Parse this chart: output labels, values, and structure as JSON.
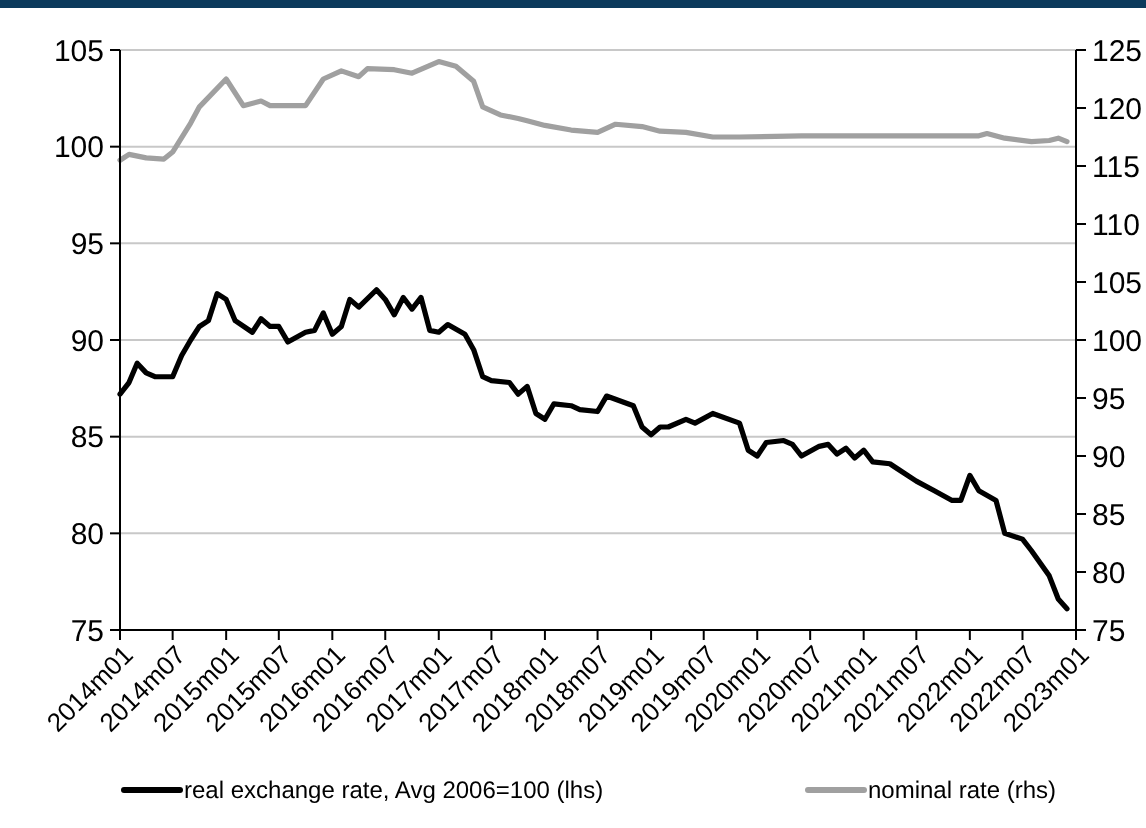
{
  "chart_data": {
    "type": "line",
    "xlim": [
      "2014-01",
      "2023-01"
    ],
    "xticks": [
      {
        "value": "2014-01",
        "label": "2014m01"
      },
      {
        "value": "2014-07",
        "label": "2014m07"
      },
      {
        "value": "2015-01",
        "label": "2015m01"
      },
      {
        "value": "2015-07",
        "label": "2015m07"
      },
      {
        "value": "2016-01",
        "label": "2016m01"
      },
      {
        "value": "2016-07",
        "label": "2016m07"
      },
      {
        "value": "2017-01",
        "label": "2017m01"
      },
      {
        "value": "2017-07",
        "label": "2017m07"
      },
      {
        "value": "2018-01",
        "label": "2018m01"
      },
      {
        "value": "2018-07",
        "label": "2018m07"
      },
      {
        "value": "2019-01",
        "label": "2019m01"
      },
      {
        "value": "2019-07",
        "label": "2019m07"
      },
      {
        "value": "2020-01",
        "label": "2020m01"
      },
      {
        "value": "2020-07",
        "label": "2020m07"
      },
      {
        "value": "2021-01",
        "label": "2021m01"
      },
      {
        "value": "2021-07",
        "label": "2021m07"
      },
      {
        "value": "2022-01",
        "label": "2022m01"
      },
      {
        "value": "2022-07",
        "label": "2022m07"
      },
      {
        "value": "2023-01",
        "label": "2023m01"
      }
    ],
    "ylim": [
      75,
      105
    ],
    "yticks": [
      75,
      80,
      85,
      90,
      95,
      100,
      105
    ],
    "y2lim": [
      75,
      125
    ],
    "y2ticks": [
      75,
      80,
      85,
      90,
      95,
      100,
      105,
      110,
      115,
      120,
      125
    ],
    "grid": "y",
    "legend": "bottom",
    "series": [
      {
        "name": "real exchange rate, Avg 2006=100 (lhs)",
        "color": "#000000",
        "axis": "y",
        "x": [
          "2014-01",
          "2014-02",
          "2014-03",
          "2014-04",
          "2014-05",
          "2014-07",
          "2014-08",
          "2014-09",
          "2014-10",
          "2014-11",
          "2014-12",
          "2015-01",
          "2015-02",
          "2015-04",
          "2015-05",
          "2015-06",
          "2015-07",
          "2015-08",
          "2015-10",
          "2015-11",
          "2015-12",
          "2016-01",
          "2016-02",
          "2016-03",
          "2016-04",
          "2016-06",
          "2016-07",
          "2016-08",
          "2016-09",
          "2016-10",
          "2016-11",
          "2016-12",
          "2017-01",
          "2017-02",
          "2017-04",
          "2017-05",
          "2017-06",
          "2017-07",
          "2017-09",
          "2017-10",
          "2017-11",
          "2017-12",
          "2018-01",
          "2018-02",
          "2018-04",
          "2018-05",
          "2018-07",
          "2018-08",
          "2018-11",
          "2018-12",
          "2019-01",
          "2019-02",
          "2019-03",
          "2019-05",
          "2019-06",
          "2019-08",
          "2019-11",
          "2019-12",
          "2020-01",
          "2020-02",
          "2020-04",
          "2020-05",
          "2020-06",
          "2020-08",
          "2020-09",
          "2020-10",
          "2020-11",
          "2020-12",
          "2021-01",
          "2021-02",
          "2021-04",
          "2021-05",
          "2021-07",
          "2021-09",
          "2021-11",
          "2021-12",
          "2022-01",
          "2022-02",
          "2022-04",
          "2022-05",
          "2022-07",
          "2022-08",
          "2022-10",
          "2022-11",
          "2022-12"
        ],
        "values": [
          87.2,
          87.8,
          88.8,
          88.3,
          88.1,
          88.1,
          89.2,
          90.0,
          90.7,
          91.0,
          92.4,
          92.1,
          91.0,
          90.4,
          91.1,
          90.7,
          90.7,
          89.9,
          90.4,
          90.5,
          91.4,
          90.3,
          90.7,
          92.1,
          91.7,
          92.6,
          92.1,
          91.3,
          92.2,
          91.6,
          92.2,
          90.5,
          90.4,
          90.8,
          90.3,
          89.5,
          88.1,
          87.9,
          87.8,
          87.2,
          87.6,
          86.2,
          85.9,
          86.7,
          86.6,
          86.4,
          86.3,
          87.1,
          86.6,
          85.5,
          85.1,
          85.5,
          85.5,
          85.9,
          85.7,
          86.2,
          85.7,
          84.3,
          84.0,
          84.7,
          84.8,
          84.6,
          84.0,
          84.5,
          84.6,
          84.1,
          84.4,
          83.9,
          84.3,
          83.7,
          83.6,
          83.3,
          82.7,
          82.2,
          81.7,
          81.7,
          83.0,
          82.2,
          81.7,
          80.0,
          79.7,
          79.1,
          77.8,
          76.6,
          76.1
        ]
      },
      {
        "name": "nominal rate (rhs)",
        "color": "#a0a0a0",
        "axis": "y2",
        "x": [
          "2014-01",
          "2014-02",
          "2014-04",
          "2014-06",
          "2014-07",
          "2014-09",
          "2014-10",
          "2015-01",
          "2015-03",
          "2015-05",
          "2015-06",
          "2015-10",
          "2015-12",
          "2016-02",
          "2016-04",
          "2016-05",
          "2016-08",
          "2016-10",
          "2017-01",
          "2017-03",
          "2017-05",
          "2017-06",
          "2017-08",
          "2017-10",
          "2017-11",
          "2018-01",
          "2018-04",
          "2018-07",
          "2018-09",
          "2018-12",
          "2019-02",
          "2019-05",
          "2019-08",
          "2019-11",
          "2020-06",
          "2021-06",
          "2022-02",
          "2022-03",
          "2022-05",
          "2022-08",
          "2022-10",
          "2022-11",
          "2022-12"
        ],
        "values": [
          115.5,
          116.0,
          115.7,
          115.6,
          116.2,
          118.7,
          120.1,
          122.5,
          120.2,
          120.6,
          120.2,
          120.2,
          122.5,
          123.2,
          122.7,
          123.4,
          123.3,
          123.0,
          124.0,
          123.6,
          122.3,
          120.1,
          119.4,
          119.1,
          118.9,
          118.5,
          118.1,
          117.9,
          118.6,
          118.4,
          118.0,
          117.9,
          117.5,
          117.5,
          117.6,
          117.6,
          117.6,
          117.8,
          117.4,
          117.1,
          117.2,
          117.4,
          117.1
        ]
      }
    ]
  }
}
